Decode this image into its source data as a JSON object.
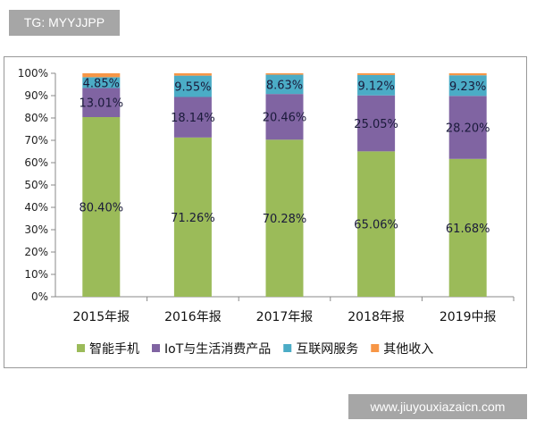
{
  "watermark_top": "TG: MYYJJPP",
  "watermark_bottom": "www.jiuyouxiazaicn.com",
  "chart_data": {
    "type": "bar",
    "stacked": true,
    "categories": [
      "2015年报",
      "2016年报",
      "2017年报",
      "2018年报",
      "2019中报"
    ],
    "ylim": [
      0,
      100
    ],
    "yticks": [
      "0%",
      "10%",
      "20%",
      "30%",
      "40%",
      "50%",
      "60%",
      "70%",
      "80%",
      "90%",
      "100%"
    ],
    "grid": false,
    "legend_position": "bottom",
    "series": [
      {
        "name": "智能手机",
        "color": "#9bbb59",
        "values": [
          80.4,
          71.26,
          70.28,
          65.06,
          61.68
        ],
        "labels": [
          "80.40%",
          "71.26%",
          "70.28%",
          "65.06%",
          "61.68%"
        ]
      },
      {
        "name": "IoT与生活消费产品",
        "color": "#8064a2",
        "values": [
          13.01,
          18.14,
          20.46,
          25.05,
          28.2
        ],
        "labels": [
          "13.01%",
          "18.14%",
          "20.46%",
          "25.05%",
          "28.20%"
        ]
      },
      {
        "name": "互联网服务",
        "color": "#4bacc6",
        "values": [
          4.85,
          9.55,
          8.63,
          9.12,
          9.23
        ],
        "labels": [
          "4.85%",
          "9.55%",
          "8.63%",
          "9.12%",
          "9.23%"
        ]
      },
      {
        "name": "其他收入",
        "color": "#f79646",
        "values": [
          1.74,
          1.05,
          0.63,
          0.77,
          0.89
        ],
        "labels": []
      }
    ]
  }
}
